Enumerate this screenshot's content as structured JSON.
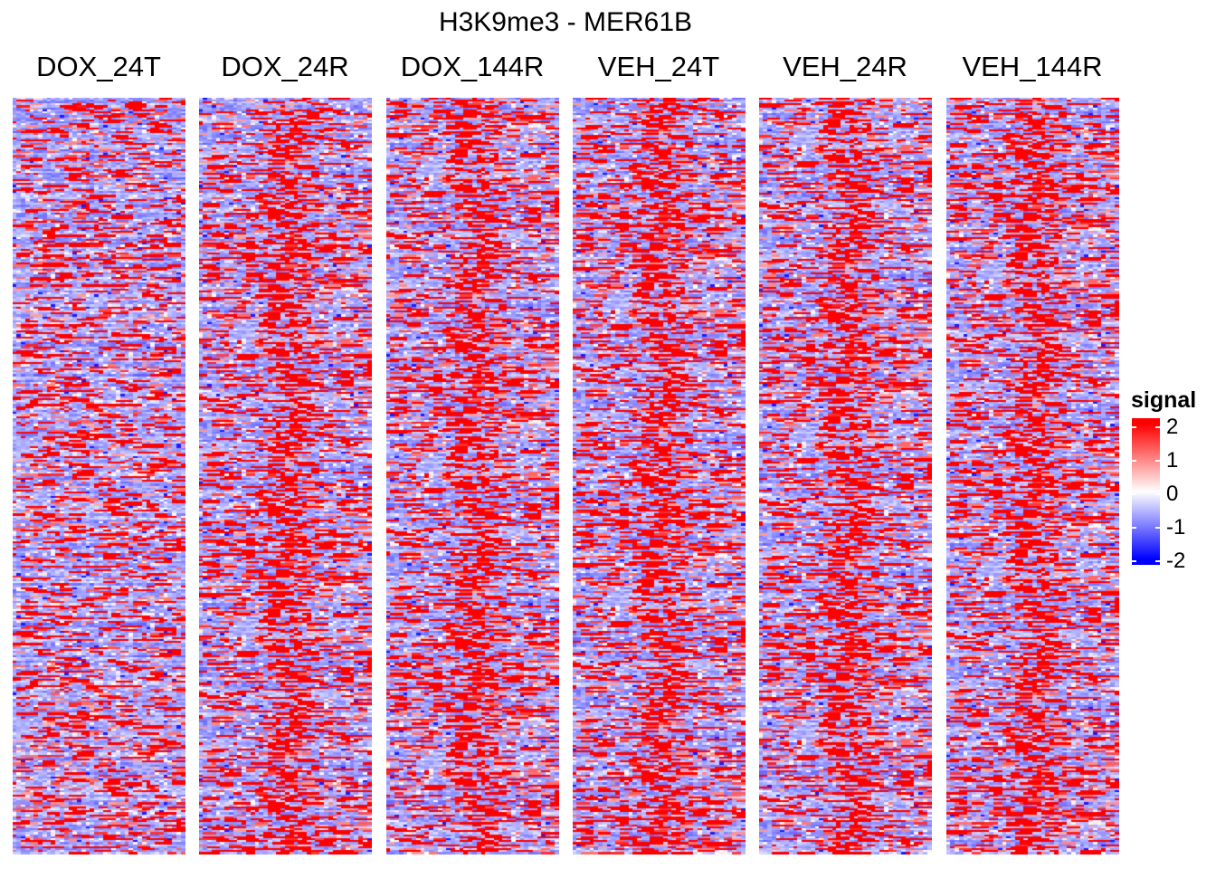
{
  "chart_data": {
    "type": "heatmap",
    "title": "H3K9me3 - MER61B",
    "panels": [
      "DOX_24T",
      "DOX_24R",
      "DOX_144R",
      "VEH_24T",
      "VEH_24R",
      "VEH_144R"
    ],
    "legend": {
      "title": "signal",
      "ticks": [
        "2",
        "1",
        "0",
        "-1",
        "-2"
      ],
      "range": [
        -2,
        2
      ],
      "colors": {
        "low": "#0000ff",
        "mid": "#ffffff",
        "high": "#ff0000"
      },
      "placement": "right"
    },
    "background_level": -0.7,
    "approx_rows": 380,
    "approx_cols": 40,
    "center_enrichment": [
      false,
      true,
      true,
      true,
      true,
      true
    ]
  }
}
